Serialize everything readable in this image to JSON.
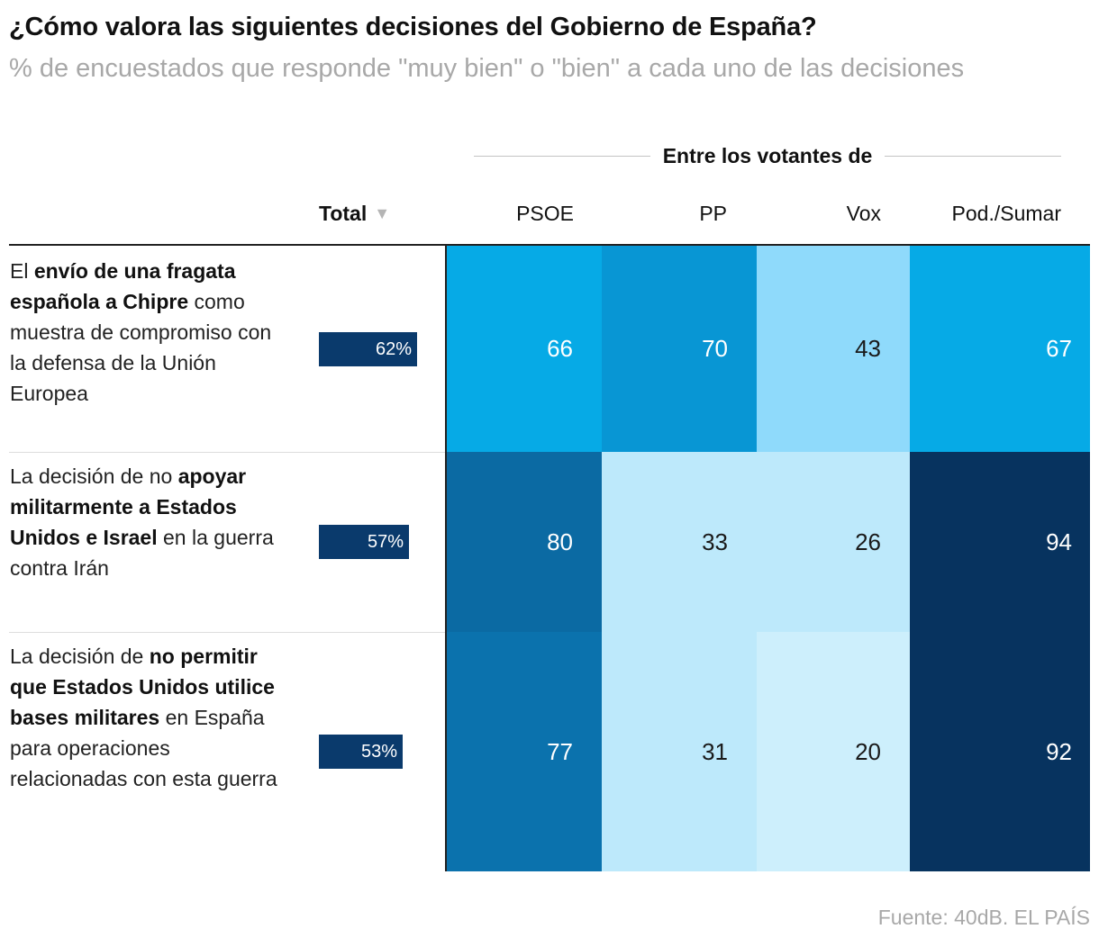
{
  "title": "¿Cómo valora las siguientes decisiones del Gobierno de España?",
  "subtitle": "% de encuestados que responde \"muy bien\" o \"bien\" a cada uno de las decisiones",
  "group_header": "Entre los votantes de",
  "total_header": "Total",
  "sort_icon": "triangle-down-icon",
  "source": "Fuente: 40dB. EL PAÍS",
  "colors": {
    "total_bar": "#0a3a6c",
    "scale": [
      "#cdeffc",
      "#bde9fb",
      "#8fdafb",
      "#06aae6",
      "#0896d4",
      "#0b72ad",
      "#0b6aa3",
      "#0a5b8f",
      "#07335f"
    ]
  },
  "chart_data": {
    "type": "table",
    "columns": [
      "PSOE",
      "PP",
      "Vox",
      "Pod./Sumar"
    ],
    "rows": [
      {
        "label_parts": [
          {
            "text": "El ",
            "bold": false
          },
          {
            "text": "envío de una fragata española a Chipre",
            "bold": true
          },
          {
            "text": " como muestra de compromiso con la defensa de la Unión Europea",
            "bold": false
          }
        ],
        "total": 62,
        "total_label": "62%",
        "values": [
          66,
          70,
          43,
          67
        ]
      },
      {
        "label_parts": [
          {
            "text": "La decisión de no ",
            "bold": false
          },
          {
            "text": "apoyar militarmente a Estados Unidos e Israel",
            "bold": true
          },
          {
            "text": " en la guerra contra Irán",
            "bold": false
          }
        ],
        "total": 57,
        "total_label": "57%",
        "values": [
          80,
          33,
          26,
          94
        ]
      },
      {
        "label_parts": [
          {
            "text": "La decisión de ",
            "bold": false
          },
          {
            "text": "no permitir que Estados Unidos utilice bases militares",
            "bold": true
          },
          {
            "text": " en España para operaciones relacionadas con esta guerra",
            "bold": false
          }
        ],
        "total": 53,
        "total_label": "53%",
        "values": [
          77,
          31,
          20,
          92
        ]
      }
    ]
  }
}
